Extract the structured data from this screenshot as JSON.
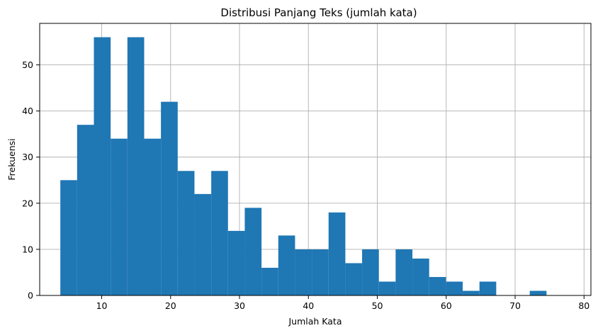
{
  "chart_data": {
    "type": "bar",
    "title": "Distribusi Panjang Teks (jumlah kata)",
    "xlabel": "Jumlah Kata",
    "ylabel": "Frekuensi",
    "xlim": [
      1,
      81
    ],
    "ylim": [
      0,
      59
    ],
    "xticks": [
      10,
      20,
      30,
      40,
      50,
      60,
      70,
      80
    ],
    "yticks": [
      0,
      10,
      20,
      30,
      40,
      50
    ],
    "grid": true,
    "bin_start": 4,
    "bin_width": 2.433,
    "values": [
      25,
      37,
      56,
      34,
      56,
      34,
      42,
      27,
      22,
      27,
      14,
      19,
      6,
      13,
      10,
      10,
      18,
      7,
      10,
      3,
      10,
      8,
      4,
      3,
      1,
      3,
      0,
      0,
      1,
      0
    ],
    "bar_color": "#1f77b4"
  }
}
